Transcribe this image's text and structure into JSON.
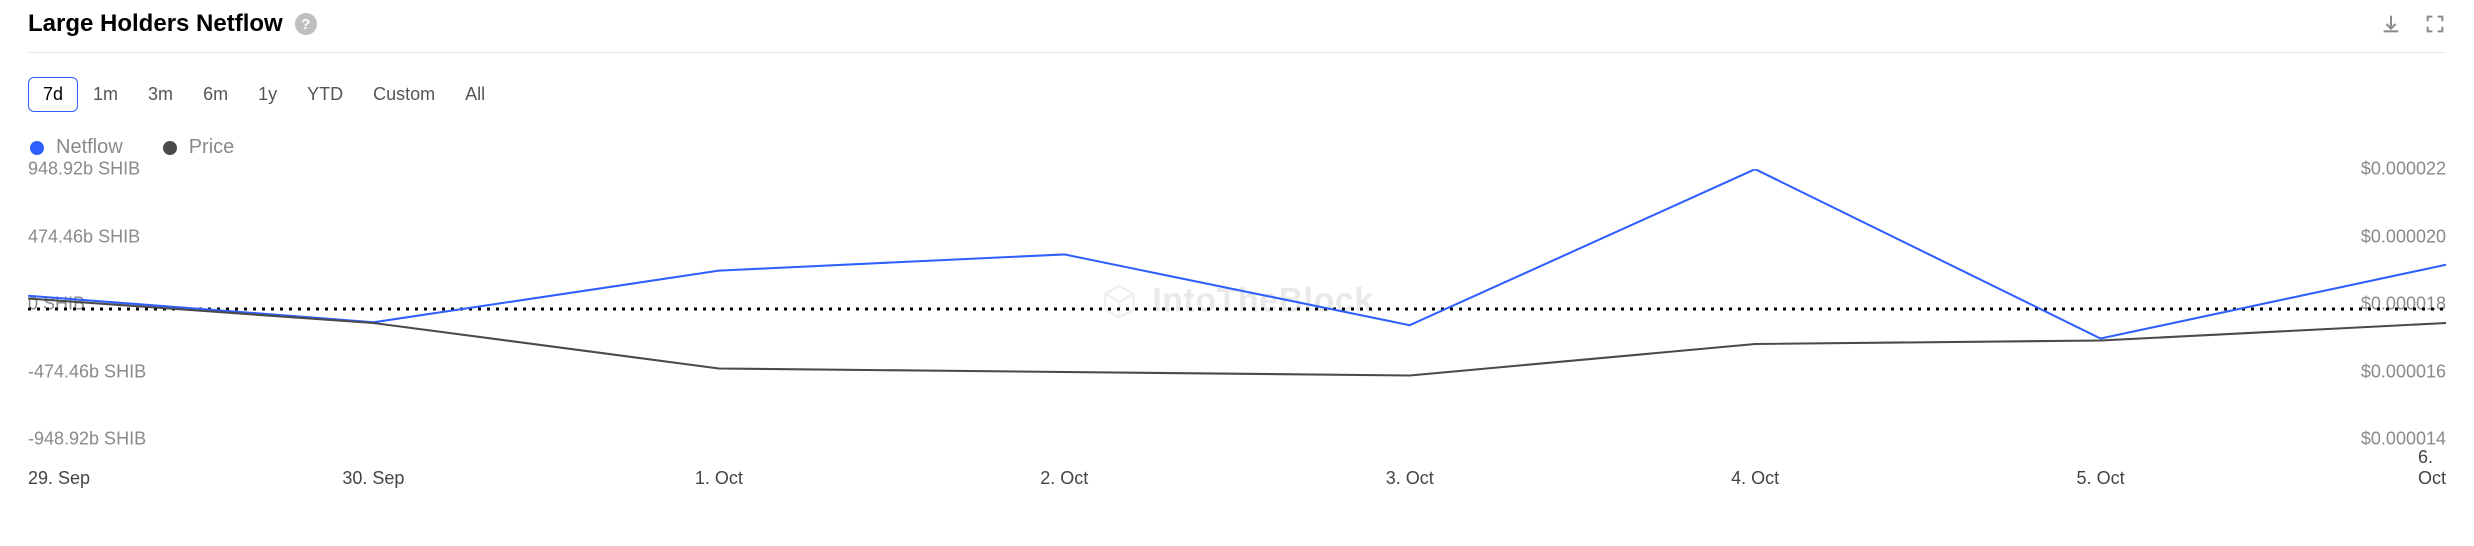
{
  "header": {
    "title": "Large Holders Netflow",
    "help_icon": "?",
    "actions": {
      "download": "download-icon",
      "fullscreen": "fullscreen-icon"
    }
  },
  "range": {
    "options": [
      "7d",
      "1m",
      "3m",
      "6m",
      "1y",
      "YTD",
      "Custom",
      "All"
    ],
    "active_index": 0
  },
  "legend": [
    {
      "label": "Netflow",
      "color": "#2f5fff"
    },
    {
      "label": "Price",
      "color": "#4a4a4a"
    }
  ],
  "watermark": {
    "text": "IntoTheBlock",
    "color": "#ededed"
  },
  "chart": {
    "type": "line",
    "background_color": "#ffffff",
    "x": {
      "labels": [
        "29. Sep",
        "30. Sep",
        "1. Oct",
        "2. Oct",
        "3. Oct",
        "4. Oct",
        "5. Oct",
        "6. Oct"
      ]
    },
    "y_left": {
      "ticks": [
        {
          "label": "948.92b SHIB",
          "value": 948.92
        },
        {
          "label": "474.46b SHIB",
          "value": 474.46
        },
        {
          "label": "0 SHIB",
          "value": 0
        },
        {
          "label": "-474.46b SHIB",
          "value": -474.46
        },
        {
          "label": "-948.92b SHIB",
          "value": -948.92
        }
      ],
      "min": -948.92,
      "max": 948.92
    },
    "y_right": {
      "ticks": [
        {
          "label": "$0.000022",
          "value": 2.2e-05
        },
        {
          "label": "$0.000020",
          "value": 2e-05
        },
        {
          "label": "$0.000018",
          "value": 1.8e-05
        },
        {
          "label": "$0.000016",
          "value": 1.6e-05
        },
        {
          "label": "$0.000014",
          "value": 1.4e-05
        }
      ],
      "min": 1.4e-05,
      "max": 2.2e-05
    },
    "zero_line": {
      "color": "#000000",
      "dash": "3,6",
      "width": 3
    },
    "series": [
      {
        "name": "Netflow",
        "axis": "left",
        "color": "#2f5fff",
        "width": 2,
        "points": [
          {
            "x": 0,
            "y": 90
          },
          {
            "x": 1,
            "y": -90
          },
          {
            "x": 2,
            "y": 260
          },
          {
            "x": 3,
            "y": 370
          },
          {
            "x": 4,
            "y": -110
          },
          {
            "x": 5,
            "y": 948
          },
          {
            "x": 6,
            "y": -200
          },
          {
            "x": 7,
            "y": 300
          }
        ]
      },
      {
        "name": "Price",
        "axis": "right",
        "color": "#4a4a4a",
        "width": 2,
        "points": [
          {
            "x": 0,
            "y": 1.83e-05
          },
          {
            "x": 1,
            "y": 1.76e-05
          },
          {
            "x": 2,
            "y": 1.63e-05
          },
          {
            "x": 3,
            "y": 1.62e-05
          },
          {
            "x": 4,
            "y": 1.61e-05
          },
          {
            "x": 5,
            "y": 1.7e-05
          },
          {
            "x": 6,
            "y": 1.71e-05
          },
          {
            "x": 7,
            "y": 1.76e-05
          }
        ]
      }
    ]
  }
}
